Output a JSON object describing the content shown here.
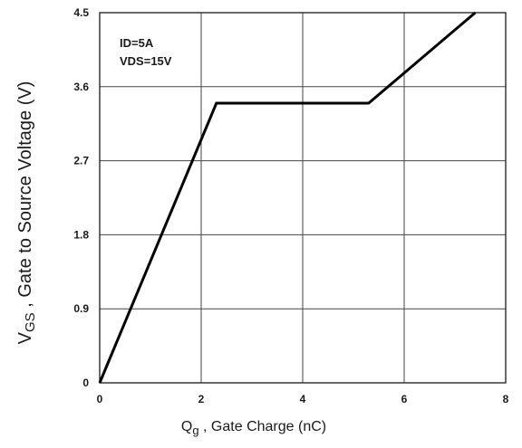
{
  "chart_data": {
    "type": "line",
    "title": "",
    "x_axis": {
      "label_main": "Q",
      "label_sub": "g",
      "label_rest": " , Gate Charge (nC)",
      "min": 0,
      "max": 8,
      "ticks": [
        0,
        2,
        4,
        6,
        8
      ],
      "tick_labels": [
        "0",
        "2",
        "4",
        "6",
        "8"
      ]
    },
    "y_axis": {
      "label_main": "V",
      "label_sub": "GS",
      "label_rest": " , Gate to Source Voltage (V)",
      "min": 0,
      "max": 4.5,
      "ticks": [
        0,
        0.9,
        1.8,
        2.7,
        3.6,
        4.5
      ],
      "tick_labels": [
        "0",
        "0.9",
        "1.8",
        "2.7",
        "3.6",
        "4.5"
      ]
    },
    "annotations": [
      "ID=5A",
      "VDS=15V"
    ],
    "grid": true,
    "series": [
      {
        "x": [
          0,
          2.3,
          5.3,
          7.4
        ],
        "y": [
          0,
          3.4,
          3.4,
          4.5
        ],
        "color": "#000000"
      }
    ]
  }
}
